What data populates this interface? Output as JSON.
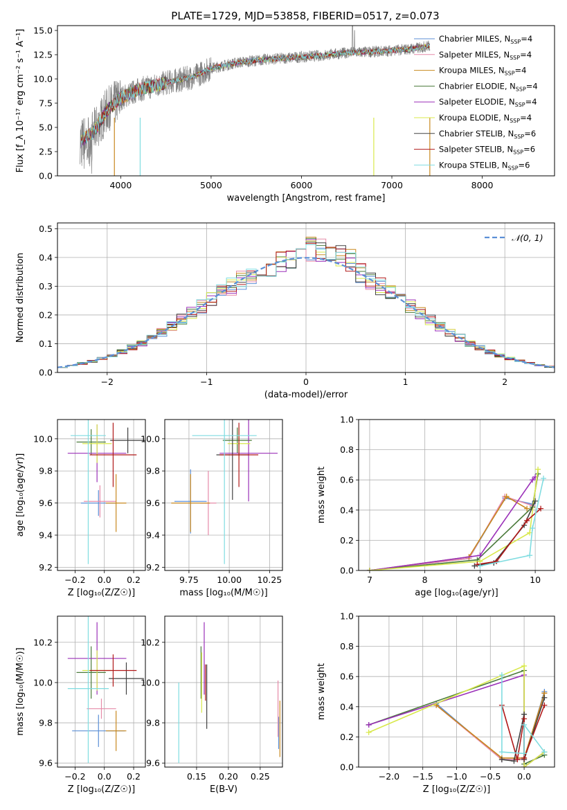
{
  "title": "PLATE=1729, MJD=53858, FIBERID=0517, z=0.073",
  "colors": {
    "Chabrier MILES": "#5b8fd6",
    "Salpeter MILES": "#e68aa8",
    "Kroupa MILES": "#c8881e",
    "Chabrier ELODIE": "#4a7a3a",
    "Salpeter ELODIE": "#9a2fb8",
    "Kroupa ELODIE": "#d8e84a",
    "Chabrier STELIB": "#404040",
    "Salpeter STELIB": "#b01818",
    "Kroupa STELIB": "#7fdce0",
    "spectrum": "#808080",
    "gauss": "#5b8fd6"
  },
  "labels": {
    "legend_sub": "SSP",
    "gauss_legend": "𝒩(0, 1)"
  },
  "chart_data": [
    {
      "type": "line",
      "id": "spectrum",
      "xlabel": "wavelength [Angstrom, rest frame]",
      "ylabel": "Flux [f_λ 10⁻¹⁷ erg cm⁻² s⁻¹ A⁻¹]",
      "xlim": [
        3300,
        8800
      ],
      "ylim": [
        0,
        15.5
      ],
      "xticks": [
        4000,
        5000,
        6000,
        7000,
        8000
      ],
      "yticks": [
        0.0,
        2.5,
        5.0,
        7.5,
        10.0,
        12.5,
        15.0
      ],
      "legend": [
        {
          "name": "Chabrier MILES",
          "label": "Chabrier MILES, N",
          "nssp": "=4"
        },
        {
          "name": "Salpeter MILES",
          "label": "Salpeter MILES, N",
          "nssp": "=4"
        },
        {
          "name": "Kroupa MILES",
          "label": "Kroupa MILES, N",
          "nssp": "=4"
        },
        {
          "name": "Chabrier ELODIE",
          "label": "Chabrier ELODIE, N",
          "nssp": "=4"
        },
        {
          "name": "Salpeter ELODIE",
          "label": "Salpeter ELODIE, N",
          "nssp": "=4"
        },
        {
          "name": "Kroupa ELODIE",
          "label": "Kroupa ELODIE, N",
          "nssp": "=4"
        },
        {
          "name": "Chabrier STELIB",
          "label": "Chabrier STELIB, N",
          "nssp": "=6"
        },
        {
          "name": "Salpeter STELIB",
          "label": "Salpeter STELIB, N",
          "nssp": "=6"
        },
        {
          "name": "Kroupa STELIB",
          "label": "Kroupa STELIB, N",
          "nssp": "=6"
        }
      ],
      "continuum": [
        [
          3550,
          3.6
        ],
        [
          3700,
          4.5
        ],
        [
          3850,
          6.8
        ],
        [
          4000,
          8.0
        ],
        [
          4200,
          8.9
        ],
        [
          4500,
          9.6
        ],
        [
          4800,
          10.2
        ],
        [
          5000,
          11.1
        ],
        [
          5300,
          11.7
        ],
        [
          5600,
          12.0
        ],
        [
          5900,
          12.2
        ],
        [
          6200,
          12.4
        ],
        [
          6500,
          12.7
        ],
        [
          6800,
          12.8
        ],
        [
          7100,
          13.0
        ],
        [
          7300,
          13.2
        ],
        [
          7400,
          13.4
        ]
      ]
    },
    {
      "type": "histogram",
      "id": "residuals",
      "xlabel": "(data-model)/error",
      "ylabel": "Normed distribution",
      "xlim": [
        -2.5,
        2.5
      ],
      "ylim": [
        0,
        0.52
      ],
      "xticks": [
        -2,
        -1,
        0,
        1,
        2
      ],
      "yticks": [
        0.0,
        0.1,
        0.2,
        0.3,
        0.4,
        0.5
      ],
      "bin_width": 0.1,
      "gauss": {
        "mu": 0,
        "sigma": 1
      }
    },
    {
      "type": "errorbar",
      "id": "age-vs-Z",
      "xlabel": "Z [log₁₀(Z/Z☉)]",
      "ylabel": "age  [log₁₀(age/yr)]",
      "xlim": [
        -0.32,
        0.28
      ],
      "ylim": [
        9.18,
        10.12
      ],
      "xticks": [
        -0.2,
        0.0,
        0.2
      ],
      "yticks": [
        9.2,
        9.4,
        9.6,
        9.8,
        10.0
      ],
      "points": [
        {
          "series": "Chabrier MILES",
          "x": -0.04,
          "xerr": 0.12,
          "y": 9.6,
          "yerr": 0.08
        },
        {
          "series": "Salpeter MILES",
          "x": -0.03,
          "xerr": 0.11,
          "y": 9.61,
          "yerr": 0.1
        },
        {
          "series": "Kroupa MILES",
          "x": 0.08,
          "xerr": 0.07,
          "y": 9.6,
          "yerr": 0.18
        },
        {
          "series": "Chabrier ELODIE",
          "x": -0.09,
          "xerr": 0.1,
          "y": 9.98,
          "yerr": 0.08
        },
        {
          "series": "Salpeter ELODIE",
          "x": -0.05,
          "xerr": 0.2,
          "y": 9.91,
          "yerr": 0.18
        },
        {
          "series": "Kroupa ELODIE",
          "x": -0.05,
          "xerr": 0.1,
          "y": 9.97,
          "yerr": 0.12
        },
        {
          "series": "Chabrier STELIB",
          "x": 0.16,
          "xerr": 0.12,
          "y": 9.99,
          "yerr": 0.08
        },
        {
          "series": "Salpeter STELIB",
          "x": 0.06,
          "xerr": 0.16,
          "y": 9.9,
          "yerr": 0.2
        },
        {
          "series": "Kroupa STELIB",
          "x": -0.11,
          "xerr": 0.12,
          "y": 10.02,
          "yerr": 0.8
        }
      ]
    },
    {
      "type": "errorbar",
      "id": "age-vs-mass",
      "xlabel": "mass [log₁₀(M/M☉)]",
      "ylabel": "",
      "xlim": [
        9.6,
        10.33
      ],
      "ylim": [
        9.18,
        10.12
      ],
      "xticks": [
        9.75,
        10.0,
        10.25
      ],
      "yticks": [
        9.2,
        9.4,
        9.6,
        9.8,
        10.0
      ],
      "points": [
        {
          "series": "Chabrier MILES",
          "x": 9.76,
          "xerr": 0.1,
          "y": 9.61,
          "yerr": 0.2
        },
        {
          "series": "Salpeter MILES",
          "x": 9.87,
          "xerr": 0.05,
          "y": 9.6,
          "yerr": 0.2
        },
        {
          "series": "Kroupa MILES",
          "x": 9.76,
          "xerr": 0.12,
          "y": 9.6,
          "yerr": 0.18
        },
        {
          "series": "Chabrier ELODIE",
          "x": 10.05,
          "xerr": 0.09,
          "y": 9.99,
          "yerr": 0.08
        },
        {
          "series": "Salpeter ELODIE",
          "x": 10.12,
          "xerr": 0.18,
          "y": 9.91,
          "yerr": 0.3
        },
        {
          "series": "Kroupa ELODIE",
          "x": 10.06,
          "xerr": 0.07,
          "y": 9.97,
          "yerr": 0.1
        },
        {
          "series": "Chabrier STELIB",
          "x": 10.02,
          "xerr": 0.1,
          "y": 9.9,
          "yerr": 0.28
        },
        {
          "series": "Salpeter STELIB",
          "x": 10.06,
          "xerr": 0.12,
          "y": 9.9,
          "yerr": 0.2
        },
        {
          "series": "Kroupa STELIB",
          "x": 9.97,
          "xerr": 0.2,
          "y": 10.02,
          "yerr": 0.8
        }
      ]
    },
    {
      "type": "line",
      "id": "mass-weight-vs-age",
      "xlabel": "age  [log₁₀(age/yr)]",
      "ylabel": "mass weight",
      "xlim": [
        6.8,
        10.35
      ],
      "ylim": [
        0,
        1.0
      ],
      "xticks": [
        7,
        8,
        9,
        10
      ],
      "yticks": [
        0.0,
        0.2,
        0.4,
        0.6,
        0.8,
        1.0
      ],
      "series": [
        {
          "name": "Chabrier MILES",
          "points": [
            [
              7.0,
              0.0
            ],
            [
              8.8,
              0.08
            ],
            [
              9.45,
              0.48
            ],
            [
              9.95,
              0.44
            ]
          ]
        },
        {
          "name": "Salpeter MILES",
          "points": [
            [
              7.0,
              0.0
            ],
            [
              8.8,
              0.08
            ],
            [
              9.45,
              0.49
            ],
            [
              9.95,
              0.43
            ]
          ]
        },
        {
          "name": "Kroupa MILES",
          "points": [
            [
              7.0,
              0.0
            ],
            [
              8.8,
              0.09
            ],
            [
              9.48,
              0.49
            ],
            [
              9.85,
              0.41
            ]
          ]
        },
        {
          "name": "Chabrier ELODIE",
          "points": [
            [
              7.0,
              0.0
            ],
            [
              8.95,
              0.07
            ],
            [
              9.95,
              0.42
            ],
            [
              10.05,
              0.64
            ]
          ]
        },
        {
          "name": "Salpeter ELODIE",
          "points": [
            [
              7.0,
              0.0
            ],
            [
              9.0,
              0.1
            ],
            [
              9.95,
              0.6
            ],
            [
              10.0,
              0.62
            ]
          ]
        },
        {
          "name": "Kroupa ELODIE",
          "points": [
            [
              7.0,
              0.0
            ],
            [
              9.0,
              0.06
            ],
            [
              9.9,
              0.25
            ],
            [
              10.05,
              0.67
            ]
          ]
        },
        {
          "name": "Chabrier STELIB",
          "points": [
            [
              8.9,
              0.03
            ],
            [
              9.25,
              0.05
            ],
            [
              9.8,
              0.3
            ],
            [
              10.0,
              0.46
            ]
          ]
        },
        {
          "name": "Salpeter STELIB",
          "points": [
            [
              8.95,
              0.04
            ],
            [
              9.3,
              0.06
            ],
            [
              9.85,
              0.33
            ],
            [
              10.1,
              0.41
            ]
          ]
        },
        {
          "name": "Kroupa STELIB",
          "points": [
            [
              9.0,
              0.03
            ],
            [
              9.9,
              0.1
            ],
            [
              9.95,
              0.28
            ],
            [
              10.15,
              0.61
            ]
          ]
        }
      ]
    },
    {
      "type": "errorbar",
      "id": "mass-vs-Z",
      "xlabel": "Z [log₁₀(Z/Z☉)]",
      "ylabel": "mass [log₁₀(M/M☉)]",
      "xlim": [
        -0.32,
        0.28
      ],
      "ylim": [
        9.58,
        10.33
      ],
      "xticks": [
        -0.2,
        0.0,
        0.2
      ],
      "yticks": [
        9.6,
        9.8,
        10.0,
        10.2
      ],
      "points": [
        {
          "series": "Chabrier MILES",
          "x": -0.04,
          "xerr": 0.18,
          "y": 9.76,
          "yerr": 0.08
        },
        {
          "series": "Salpeter MILES",
          "x": -0.02,
          "xerr": 0.1,
          "y": 9.87,
          "yerr": 0.05
        },
        {
          "series": "Kroupa MILES",
          "x": 0.08,
          "xerr": 0.07,
          "y": 9.76,
          "yerr": 0.1
        },
        {
          "series": "Chabrier ELODIE",
          "x": -0.09,
          "xerr": 0.1,
          "y": 10.05,
          "yerr": 0.13
        },
        {
          "series": "Salpeter ELODIE",
          "x": -0.05,
          "xerr": 0.2,
          "y": 10.12,
          "yerr": 0.18
        },
        {
          "series": "Kroupa ELODIE",
          "x": -0.05,
          "xerr": 0.1,
          "y": 10.06,
          "yerr": 0.1
        },
        {
          "series": "Chabrier STELIB",
          "x": 0.15,
          "xerr": 0.12,
          "y": 10.02,
          "yerr": 0.08
        },
        {
          "series": "Salpeter STELIB",
          "x": 0.06,
          "xerr": 0.16,
          "y": 10.06,
          "yerr": 0.08
        },
        {
          "series": "Kroupa STELIB",
          "x": -0.11,
          "xerr": 0.14,
          "y": 9.97,
          "yerr": 0.37
        }
      ]
    },
    {
      "type": "errorbar",
      "id": "mass-vs-ebv",
      "xlabel": "E(B-V)",
      "ylabel": "",
      "xlim": [
        0.1,
        0.285
      ],
      "ylim": [
        9.58,
        10.33
      ],
      "xticks": [
        0.15,
        0.2,
        0.25
      ],
      "yticks": [
        9.6,
        9.8,
        10.0,
        10.2
      ],
      "points": [
        {
          "series": "Chabrier MILES",
          "x": 0.279,
          "xerr": 0.0,
          "y": 9.75,
          "yerr": 0.08
        },
        {
          "series": "Salpeter MILES",
          "x": 0.278,
          "xerr": 0.0,
          "y": 9.87,
          "yerr": 0.14
        },
        {
          "series": "Kroupa MILES",
          "x": 0.281,
          "xerr": 0.0,
          "y": 9.77,
          "yerr": 0.14
        },
        {
          "series": "Chabrier ELODIE",
          "x": 0.157,
          "xerr": 0.0,
          "y": 10.05,
          "yerr": 0.13
        },
        {
          "series": "Salpeter ELODIE",
          "x": 0.162,
          "xerr": 0.0,
          "y": 10.12,
          "yerr": 0.18
        },
        {
          "series": "Kroupa ELODIE",
          "x": 0.158,
          "xerr": 0.0,
          "y": 10.0,
          "yerr": 0.15
        },
        {
          "series": "Chabrier STELIB",
          "x": 0.166,
          "xerr": 0.0,
          "y": 9.93,
          "yerr": 0.16
        },
        {
          "series": "Salpeter STELIB",
          "x": 0.164,
          "xerr": 0.0,
          "y": 10.0,
          "yerr": 0.09
        },
        {
          "series": "Kroupa STELIB",
          "x": 0.122,
          "xerr": 0.0,
          "y": 9.8,
          "yerr": 0.2
        }
      ]
    },
    {
      "type": "line",
      "id": "mass-weight-vs-Z",
      "xlabel": "Z [log₁₀(Z/Z☉)]",
      "ylabel": "mass weight",
      "xlim": [
        -2.45,
        0.45
      ],
      "ylim": [
        0,
        1.0
      ],
      "xticks": [
        -2.0,
        -1.5,
        -1.0,
        -0.5,
        0.0
      ],
      "yticks": [
        0.0,
        0.2,
        0.4,
        0.6,
        0.8,
        1.0
      ],
      "series": [
        {
          "name": "Chabrier MILES",
          "points": [
            [
              -1.3,
              0.42
            ],
            [
              -0.33,
              0.05
            ],
            [
              0.0,
              0.05
            ],
            [
              0.3,
              0.5
            ]
          ]
        },
        {
          "name": "Salpeter MILES",
          "points": [
            [
              -1.3,
              0.41
            ],
            [
              -0.33,
              0.05
            ],
            [
              0.0,
              0.05
            ],
            [
              0.3,
              0.49
            ]
          ]
        },
        {
          "name": "Kroupa MILES",
          "points": [
            [
              -1.3,
              0.41
            ],
            [
              -0.33,
              0.06
            ],
            [
              0.0,
              0.06
            ],
            [
              0.3,
              0.49
            ]
          ]
        },
        {
          "name": "Chabrier ELODIE",
          "points": [
            [
              -2.3,
              0.28
            ],
            [
              0.0,
              0.64
            ],
            [
              0.0,
              0.02
            ],
            [
              0.3,
              0.08
            ]
          ]
        },
        {
          "name": "Salpeter ELODIE",
          "points": [
            [
              -2.3,
              0.28
            ],
            [
              0.0,
              0.61
            ],
            [
              0.0,
              0.0
            ],
            [
              0.3,
              0.1
            ]
          ]
        },
        {
          "name": "Kroupa ELODIE",
          "points": [
            [
              -2.3,
              0.23
            ],
            [
              0.0,
              0.67
            ],
            [
              0.0,
              0.0
            ],
            [
              0.3,
              0.1
            ]
          ]
        },
        {
          "name": "Chabrier STELIB",
          "points": [
            [
              -0.33,
              0.05
            ],
            [
              -0.15,
              0.04
            ],
            [
              0.0,
              0.35
            ],
            [
              0.0,
              0.05
            ],
            [
              0.3,
              0.46
            ]
          ]
        },
        {
          "name": "Salpeter STELIB",
          "points": [
            [
              -0.33,
              0.41
            ],
            [
              -0.1,
              0.05
            ],
            [
              0.0,
              0.32
            ],
            [
              0.0,
              0.06
            ],
            [
              0.3,
              0.41
            ]
          ]
        },
        {
          "name": "Kroupa STELIB",
          "points": [
            [
              -0.33,
              0.61
            ],
            [
              -0.33,
              0.1
            ],
            [
              0.0,
              0.09
            ],
            [
              0.0,
              0.28
            ],
            [
              0.3,
              0.1
            ]
          ]
        }
      ]
    }
  ]
}
